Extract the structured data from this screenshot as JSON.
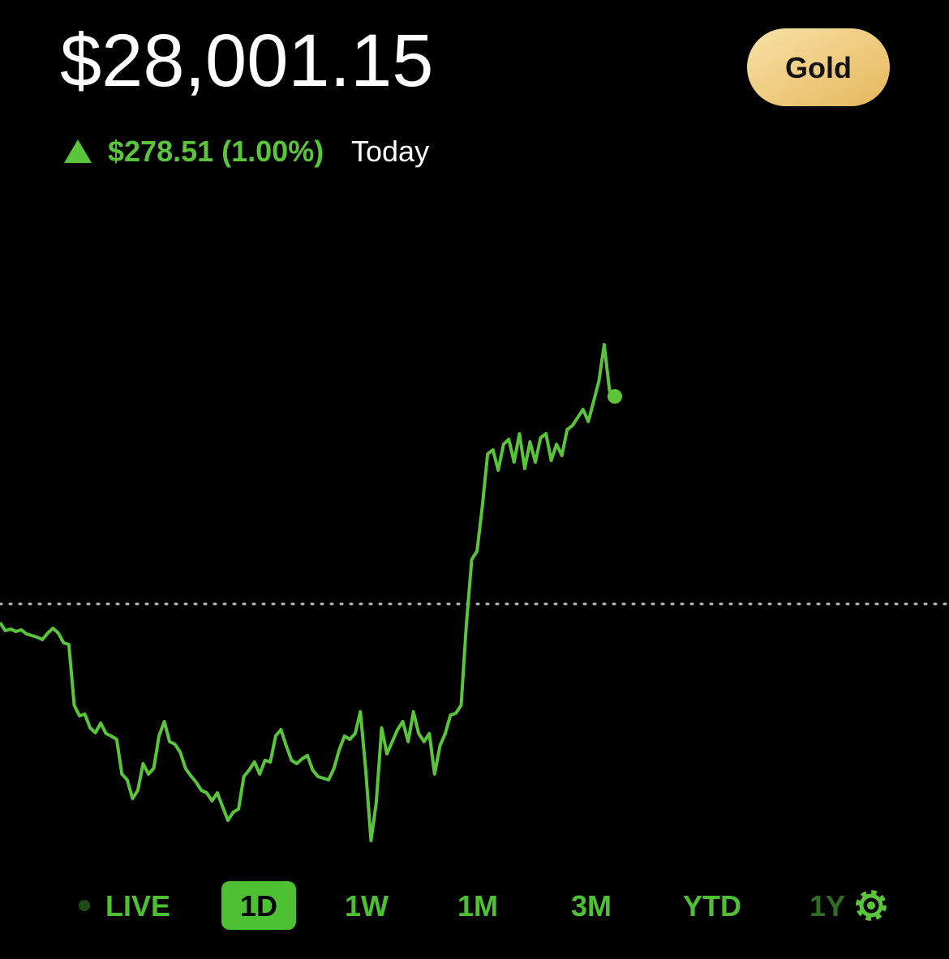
{
  "header": {
    "price": "$28,001.15",
    "badge": "Gold",
    "change": "$278.51 (1.00%)",
    "period": "Today"
  },
  "chart_data": {
    "type": "line",
    "color": "#5ac53b",
    "previous_close": 27722.64,
    "values": [
      27697.6,
      27686.7,
      27688.9,
      27685.6,
      27687.8,
      27682.4,
      27680.2,
      27678.0,
      27674.8,
      27683.5,
      27690.0,
      27683.5,
      27670.4,
      27668.2,
      27586.6,
      27572.5,
      27574.7,
      27556.2,
      27549.7,
      27562.7,
      27548.6,
      27545.3,
      27540.9,
      27494.2,
      27486.5,
      27461.5,
      27472.4,
      27508.3,
      27494.2,
      27501.8,
      27545.3,
      27564.9,
      27537.7,
      27534.4,
      27523.5,
      27501.8,
      27492.0,
      27483.3,
      27472.4,
      27469.1,
      27458.3,
      27469.1,
      27450.6,
      27432.1,
      27443.0,
      27447.4,
      27490.9,
      27499.6,
      27510.5,
      27494.2,
      27512.7,
      27510.5,
      27545.3,
      27554.0,
      27532.2,
      27512.7,
      27508.3,
      27514.8,
      27519.2,
      27499.6,
      27490.9,
      27488.7,
      27486.5,
      27501.8,
      27526.8,
      27545.3,
      27540.9,
      27548.6,
      27577.9,
      27499.6,
      27404.9,
      27456.1,
      27556.2,
      27521.4,
      27537.7,
      27554.0,
      27564.9,
      27537.7,
      27577.9,
      27548.6,
      27537.7,
      27548.6,
      27494.2,
      27532.2,
      27548.6,
      27573.6,
      27575.8,
      27586.6,
      27695.4,
      27782.5,
      27793.4,
      27853.2,
      27923.9,
      27929.4,
      27902.2,
      27937.0,
      27943.5,
      27913.0,
      27951.1,
      27904.3,
      27940.2,
      27913.0,
      27945.7,
      27951.1,
      27915.2,
      27937.0,
      27921.7,
      27956.6,
      27962.0,
      27972.9,
      27983.8,
      27967.4,
      27994.6,
      28021.8,
      28070.8,
      28008.8,
      28001.15
    ]
  },
  "ranges": {
    "items": [
      "LIVE",
      "1D",
      "1W",
      "1M",
      "3M",
      "YTD",
      "1Y"
    ],
    "active": "1D"
  }
}
